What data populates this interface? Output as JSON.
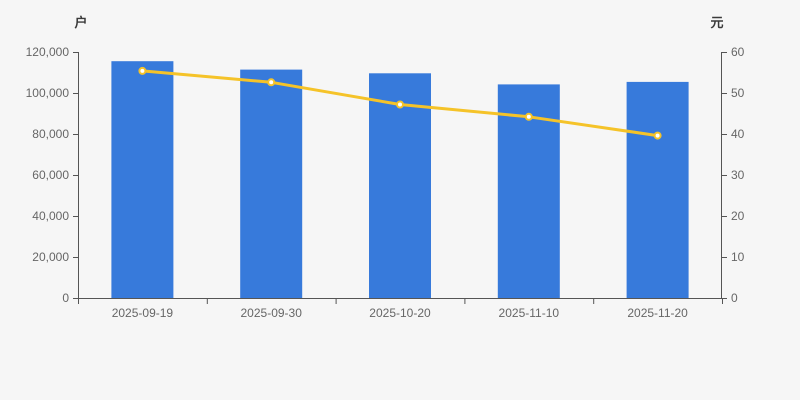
{
  "page": {
    "background_color": "#f6f6f6"
  },
  "chart_data": {
    "type": "bar",
    "categories": [
      "2025-09-19",
      "2025-09-30",
      "2025-10-20",
      "2025-11-10",
      "2025-11-20"
    ],
    "series": [
      {
        "name": "bar-series",
        "type": "bar",
        "axis": "left",
        "color": "#377adb",
        "values": [
          115500,
          111400,
          109600,
          104200,
          105400
        ]
      },
      {
        "name": "line-series",
        "type": "line",
        "axis": "right",
        "color": "#f5c329",
        "marker_fill": "#ffffff",
        "values": [
          55.4,
          52.6,
          47.2,
          44.2,
          39.6
        ]
      }
    ],
    "left_axis": {
      "unit_label": "户",
      "min": 0,
      "max": 120000,
      "tick_step": 20000,
      "tick_labels": [
        "0",
        "20,000",
        "40,000",
        "60,000",
        "80,000",
        "100,000",
        "120,000"
      ]
    },
    "right_axis": {
      "unit_label": "元",
      "min": 0,
      "max": 60,
      "tick_step": 10,
      "tick_labels": [
        "0",
        "10",
        "20",
        "30",
        "40",
        "50",
        "60"
      ]
    },
    "legend": "none",
    "grid": false,
    "title": ""
  }
}
